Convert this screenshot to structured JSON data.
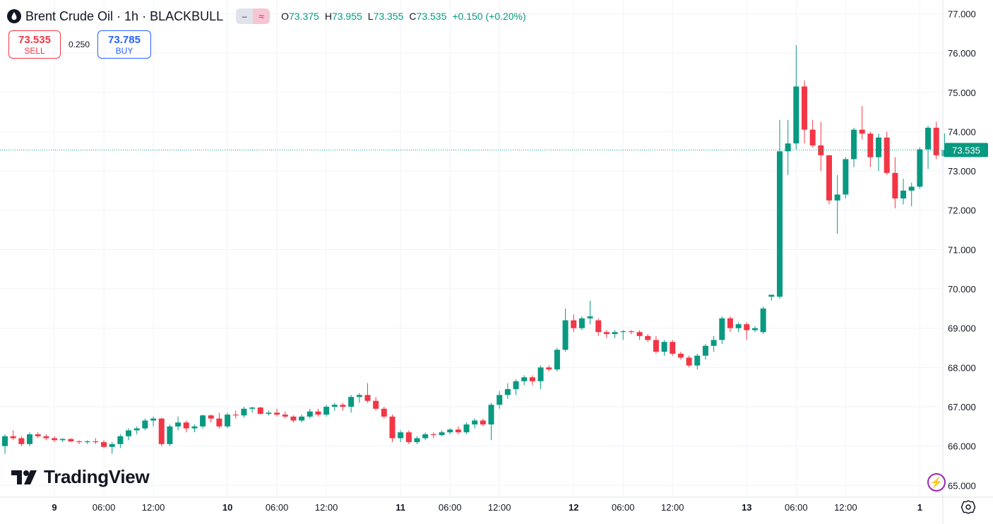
{
  "header": {
    "symbol_title": "Brent Crude Oil · 1h · BLACKBULL",
    "ohlc": [
      {
        "label": "O",
        "value": "73.375"
      },
      {
        "label": "H",
        "value": "73.955"
      },
      {
        "label": "L",
        "value": "73.355"
      },
      {
        "label": "C",
        "value": "73.535"
      }
    ],
    "change": "+0.150 (+0.20%)"
  },
  "trade": {
    "sell_price": "73.535",
    "sell_label": "SELL",
    "spread": "0.250",
    "buy_price": "73.785",
    "buy_label": "BUY"
  },
  "brand": {
    "logo_text": "TradingView"
  },
  "colors": {
    "up": "#089981",
    "down": "#f23645",
    "grid": "#f0f3fa",
    "axis_text": "#131722"
  },
  "chart_data": {
    "type": "candlestick",
    "ylim": [
      64.7,
      77.35
    ],
    "y_ticks": [
      "77.000",
      "76.000",
      "75.000",
      "74.000",
      "73.000",
      "72.000",
      "71.000",
      "70.000",
      "69.000",
      "68.000",
      "67.000",
      "66.000",
      "65.000"
    ],
    "x_ticks": [
      {
        "label": "9",
        "index": 6,
        "bold": true
      },
      {
        "label": "06:00",
        "index": 12
      },
      {
        "label": "12:00",
        "index": 18
      },
      {
        "label": "10",
        "index": 27,
        "bold": true
      },
      {
        "label": "06:00",
        "index": 33
      },
      {
        "label": "12:00",
        "index": 39
      },
      {
        "label": "11",
        "index": 48,
        "bold": true
      },
      {
        "label": "06:00",
        "index": 54
      },
      {
        "label": "12:00",
        "index": 60
      },
      {
        "label": "12",
        "index": 69,
        "bold": true
      },
      {
        "label": "06:00",
        "index": 75
      },
      {
        "label": "12:00",
        "index": 81
      },
      {
        "label": "13",
        "index": 90,
        "bold": true
      },
      {
        "label": "06:00",
        "index": 96
      },
      {
        "label": "12:00",
        "index": 102
      },
      {
        "label": "1",
        "index": 111,
        "bold": true
      }
    ],
    "last_price": "73.535",
    "candles": [
      [
        66.0,
        66.3,
        65.8,
        66.25
      ],
      [
        66.25,
        66.4,
        66.15,
        66.2
      ],
      [
        66.2,
        66.25,
        66.0,
        66.05
      ],
      [
        66.05,
        66.35,
        66.0,
        66.3
      ],
      [
        66.3,
        66.35,
        66.2,
        66.25
      ],
      [
        66.25,
        66.3,
        66.15,
        66.2
      ],
      [
        66.2,
        66.25,
        66.1,
        66.15
      ],
      [
        66.15,
        66.2,
        66.1,
        66.18
      ],
      [
        66.18,
        66.2,
        66.1,
        66.12
      ],
      [
        66.12,
        66.15,
        66.05,
        66.1
      ],
      [
        66.1,
        66.15,
        66.05,
        66.12
      ],
      [
        66.12,
        66.2,
        66.05,
        66.1
      ],
      [
        66.1,
        66.15,
        65.95,
        65.98
      ],
      [
        65.98,
        66.1,
        65.8,
        66.05
      ],
      [
        66.05,
        66.3,
        65.95,
        66.25
      ],
      [
        66.25,
        66.45,
        66.15,
        66.4
      ],
      [
        66.4,
        66.5,
        66.3,
        66.45
      ],
      [
        66.45,
        66.7,
        66.4,
        66.65
      ],
      [
        66.65,
        66.75,
        66.5,
        66.7
      ],
      [
        66.7,
        66.72,
        66.0,
        66.05
      ],
      [
        66.05,
        66.55,
        66.0,
        66.5
      ],
      [
        66.5,
        66.75,
        66.4,
        66.6
      ],
      [
        66.6,
        66.65,
        66.35,
        66.45
      ],
      [
        66.45,
        66.55,
        66.35,
        66.5
      ],
      [
        66.5,
        66.8,
        66.45,
        66.78
      ],
      [
        66.78,
        66.8,
        66.6,
        66.7
      ],
      [
        66.7,
        66.85,
        66.45,
        66.5
      ],
      [
        66.5,
        66.85,
        66.45,
        66.8
      ],
      [
        66.8,
        66.9,
        66.7,
        66.78
      ],
      [
        66.78,
        67.0,
        66.72,
        66.95
      ],
      [
        66.95,
        67.0,
        66.85,
        66.98
      ],
      [
        66.98,
        67.0,
        66.8,
        66.82
      ],
      [
        66.82,
        66.9,
        66.78,
        66.85
      ],
      [
        66.85,
        66.95,
        66.75,
        66.8
      ],
      [
        66.8,
        66.88,
        66.7,
        66.75
      ],
      [
        66.75,
        66.78,
        66.6,
        66.65
      ],
      [
        66.65,
        66.8,
        66.6,
        66.75
      ],
      [
        66.75,
        66.95,
        66.7,
        66.88
      ],
      [
        66.88,
        66.95,
        66.75,
        66.8
      ],
      [
        66.8,
        67.05,
        66.75,
        67.0
      ],
      [
        67.0,
        67.1,
        66.9,
        67.05
      ],
      [
        67.05,
        67.1,
        66.9,
        67.0
      ],
      [
        67.0,
        67.3,
        66.85,
        67.25
      ],
      [
        67.25,
        67.35,
        67.1,
        67.3
      ],
      [
        67.3,
        67.6,
        67.1,
        67.15
      ],
      [
        67.15,
        67.25,
        66.9,
        66.95
      ],
      [
        66.95,
        67.0,
        66.7,
        66.75
      ],
      [
        66.75,
        66.8,
        66.1,
        66.2
      ],
      [
        66.2,
        66.4,
        66.1,
        66.35
      ],
      [
        66.35,
        66.4,
        66.05,
        66.1
      ],
      [
        66.1,
        66.25,
        66.05,
        66.2
      ],
      [
        66.2,
        66.35,
        66.15,
        66.3
      ],
      [
        66.3,
        66.35,
        66.2,
        66.28
      ],
      [
        66.28,
        66.4,
        66.25,
        66.35
      ],
      [
        66.35,
        66.45,
        66.3,
        66.42
      ],
      [
        66.42,
        66.5,
        66.3,
        66.35
      ],
      [
        66.35,
        66.6,
        66.3,
        66.55
      ],
      [
        66.55,
        66.7,
        66.45,
        66.65
      ],
      [
        66.65,
        66.7,
        66.5,
        66.55
      ],
      [
        66.55,
        67.1,
        66.15,
        67.05
      ],
      [
        67.05,
        67.4,
        66.95,
        67.3
      ],
      [
        67.3,
        67.6,
        67.2,
        67.45
      ],
      [
        67.45,
        67.7,
        67.3,
        67.65
      ],
      [
        67.65,
        67.8,
        67.55,
        67.75
      ],
      [
        67.75,
        67.8,
        67.55,
        67.65
      ],
      [
        67.65,
        68.05,
        67.45,
        68.0
      ],
      [
        68.0,
        68.05,
        67.9,
        67.95
      ],
      [
        67.95,
        68.5,
        67.9,
        68.45
      ],
      [
        68.45,
        69.5,
        68.4,
        69.2
      ],
      [
        69.2,
        69.35,
        68.9,
        69.0
      ],
      [
        69.0,
        69.3,
        68.95,
        69.25
      ],
      [
        69.25,
        69.7,
        69.1,
        69.3
      ],
      [
        69.2,
        69.25,
        68.8,
        68.9
      ],
      [
        68.9,
        68.95,
        68.75,
        68.85
      ],
      [
        68.85,
        68.95,
        68.75,
        68.9
      ],
      [
        68.9,
        68.95,
        68.7,
        68.92
      ],
      [
        68.92,
        68.95,
        68.85,
        68.9
      ],
      [
        68.9,
        68.95,
        68.7,
        68.8
      ],
      [
        68.8,
        68.85,
        68.65,
        68.7
      ],
      [
        68.7,
        68.8,
        68.35,
        68.4
      ],
      [
        68.4,
        68.7,
        68.3,
        68.65
      ],
      [
        68.65,
        68.7,
        68.3,
        68.35
      ],
      [
        68.35,
        68.4,
        68.2,
        68.25
      ],
      [
        68.25,
        68.3,
        68.0,
        68.05
      ],
      [
        68.05,
        68.35,
        67.95,
        68.3
      ],
      [
        68.3,
        68.6,
        68.2,
        68.55
      ],
      [
        68.55,
        68.8,
        68.4,
        68.7
      ],
      [
        68.7,
        69.3,
        68.6,
        69.25
      ],
      [
        69.25,
        69.3,
        68.9,
        69.0
      ],
      [
        69.0,
        69.15,
        68.9,
        69.1
      ],
      [
        69.1,
        69.15,
        68.7,
        68.95
      ],
      [
        68.95,
        69.05,
        68.9,
        69.0
      ],
      [
        68.9,
        69.55,
        68.85,
        69.5
      ],
      [
        69.8,
        69.85,
        69.7,
        69.85
      ],
      [
        69.8,
        74.3,
        69.75,
        73.5
      ],
      [
        73.5,
        74.3,
        72.9,
        73.7
      ],
      [
        73.7,
        76.2,
        73.55,
        75.15
      ],
      [
        75.15,
        75.3,
        73.7,
        74.05
      ],
      [
        74.05,
        74.3,
        73.6,
        73.65
      ],
      [
        73.65,
        74.25,
        73.0,
        73.4
      ],
      [
        73.4,
        73.4,
        72.15,
        72.25
      ],
      [
        72.25,
        72.9,
        71.4,
        72.4
      ],
      [
        72.4,
        73.35,
        72.3,
        73.3
      ],
      [
        73.3,
        74.1,
        73.1,
        74.05
      ],
      [
        74.05,
        74.65,
        73.8,
        73.95
      ],
      [
        73.95,
        74.0,
        73.1,
        73.35
      ],
      [
        73.35,
        73.95,
        73.0,
        73.85
      ],
      [
        73.85,
        74.0,
        72.9,
        72.95
      ],
      [
        72.95,
        73.35,
        72.05,
        72.3
      ],
      [
        72.3,
        72.8,
        72.15,
        72.5
      ],
      [
        72.5,
        72.7,
        72.1,
        72.6
      ],
      [
        72.6,
        73.6,
        72.55,
        73.55
      ],
      [
        73.55,
        74.15,
        73.05,
        74.1
      ],
      [
        74.1,
        74.25,
        73.3,
        73.4
      ],
      [
        73.375,
        73.955,
        73.355,
        73.535
      ]
    ]
  }
}
